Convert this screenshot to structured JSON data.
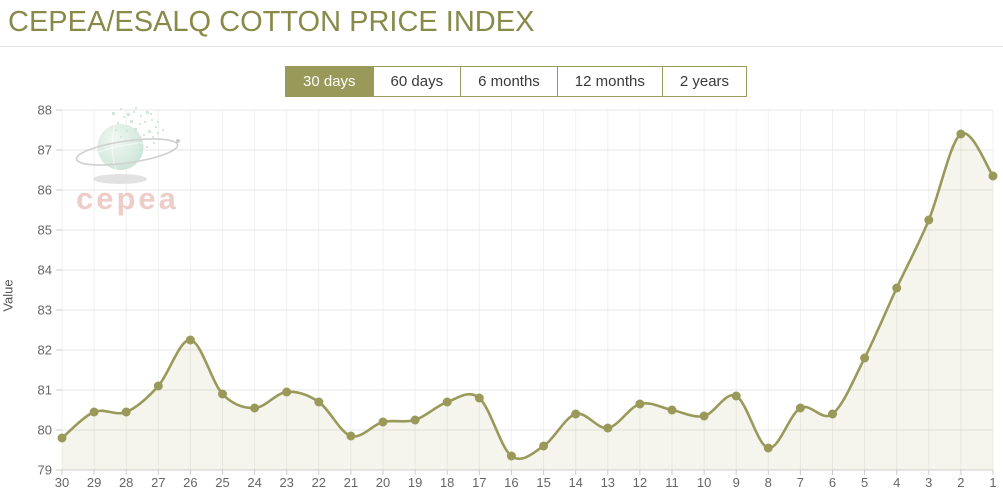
{
  "header": {
    "title": "CEPEA/ESALQ COTTON PRICE INDEX"
  },
  "tabs": [
    {
      "label": "30 days",
      "active": true
    },
    {
      "label": "60 days",
      "active": false
    },
    {
      "label": "6 months",
      "active": false
    },
    {
      "label": "12 months",
      "active": false
    },
    {
      "label": "2 years",
      "active": false
    }
  ],
  "watermark": {
    "text": "cepea"
  },
  "colors": {
    "title": "#898a4a",
    "accent": "#999a5a",
    "line": "#999a5a",
    "marker": "#999a5a",
    "area": "rgba(153,154,90,0.10)",
    "grid_h": "#e6e6e6",
    "grid_v": "#f0f0ee",
    "axis_line": "#d0d0d0",
    "tick": "#cccccc",
    "axis_text": "#666666",
    "tab_selected_bg": "#999a5a",
    "tab_selected_text": "#ffffff",
    "tab_border": "#9a9b5c",
    "watermark_text": "#e7b6af"
  },
  "chart_data": {
    "type": "line",
    "title": "CEPEA/ESALQ COTTON PRICE INDEX",
    "xlabel": "",
    "ylabel": "Value",
    "smooth": true,
    "grid": true,
    "legend_position": "none",
    "ylim": [
      79,
      88
    ],
    "ytick_step": 1,
    "x": [
      "30",
      "29",
      "28",
      "27",
      "26",
      "25",
      "24",
      "23",
      "22",
      "21",
      "20",
      "19",
      "18",
      "17",
      "16",
      "15",
      "14",
      "13",
      "12",
      "11",
      "10",
      "9",
      "8",
      "7",
      "6",
      "5",
      "4",
      "3",
      "2",
      "1"
    ],
    "values": [
      79.8,
      80.45,
      80.45,
      81.1,
      82.25,
      80.9,
      80.55,
      80.95,
      80.7,
      79.85,
      80.2,
      80.25,
      80.7,
      80.8,
      79.35,
      79.6,
      80.4,
      80.05,
      80.65,
      80.5,
      80.35,
      80.85,
      79.55,
      80.55,
      80.4,
      81.8,
      83.55,
      85.25,
      87.4,
      86.35
    ]
  }
}
